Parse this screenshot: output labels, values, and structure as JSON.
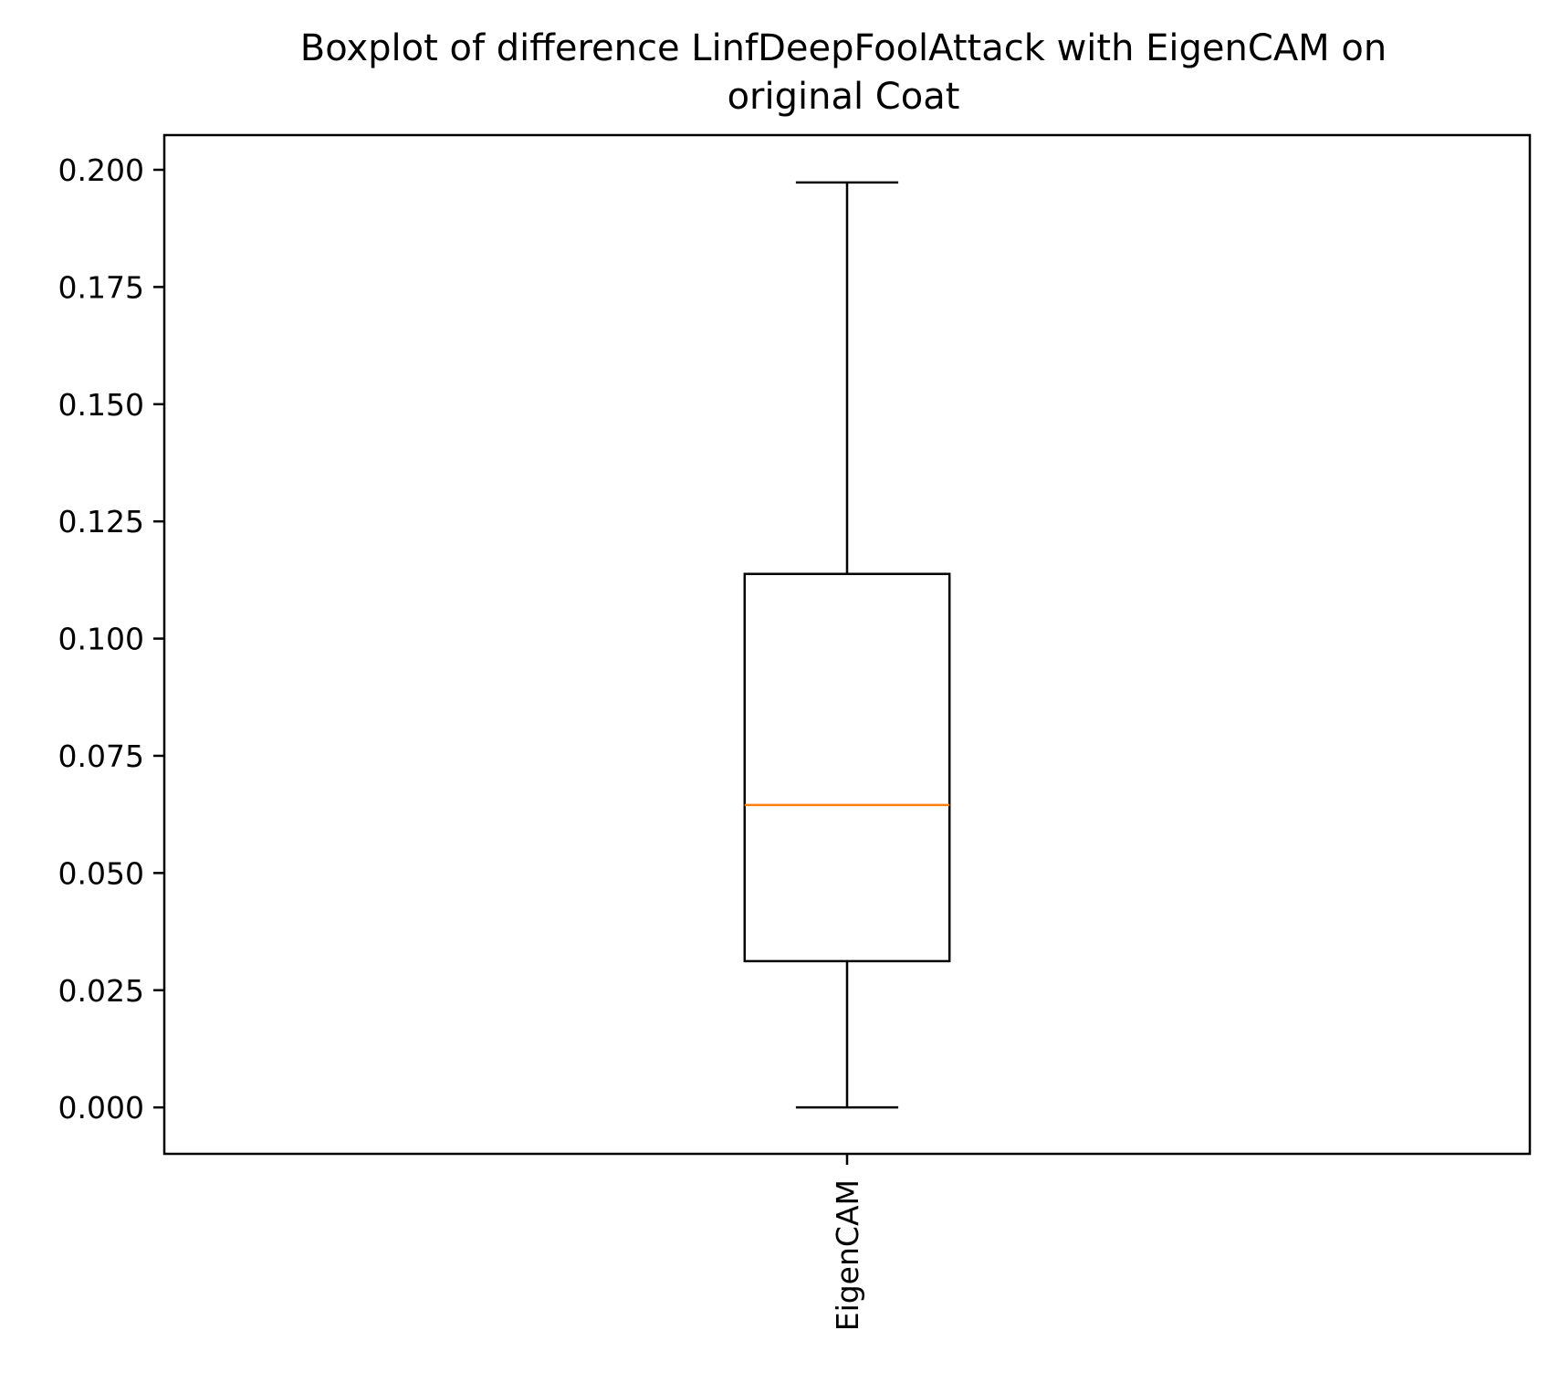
{
  "chart_data": {
    "type": "boxplot",
    "title": "Boxplot of difference LinfDeepFoolAttack with EigenCAM on original Coat",
    "title_lines": [
      "Boxplot of difference LinfDeepFoolAttack with EigenCAM on",
      "original Coat"
    ],
    "categories": [
      "EigenCAM"
    ],
    "boxes": [
      {
        "category": "EigenCAM",
        "whisker_low": 0.0,
        "q1": 0.0312,
        "median": 0.0645,
        "q3": 0.1138,
        "whisker_high": 0.1973
      }
    ],
    "ylim": [
      -0.0099,
      0.2074
    ],
    "yticks": [
      0.0,
      0.025,
      0.05,
      0.075,
      0.1,
      0.125,
      0.15,
      0.175,
      0.2
    ],
    "ytick_labels": [
      "0.000",
      "0.025",
      "0.050",
      "0.075",
      "0.100",
      "0.125",
      "0.150",
      "0.175",
      "0.200"
    ],
    "xtick_labels": [
      "EigenCAM"
    ],
    "xtick_rotation": "vertical",
    "xlabel": "",
    "ylabel": "",
    "grid": false,
    "colors": {
      "box": "#000000",
      "median": "#ff7f0e"
    }
  }
}
